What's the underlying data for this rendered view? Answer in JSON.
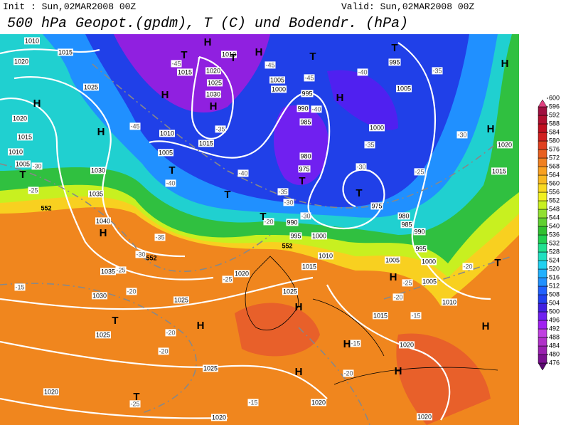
{
  "header": {
    "init": "Init : Sun,02MAR2008 00Z",
    "valid": "Valid: Sun,02MAR2008 00Z",
    "title": "500 hPa Geopot.(gpdm), T (C) und Bodendr. (hPa)"
  },
  "legend": {
    "levels": [
      476,
      480,
      484,
      488,
      492,
      496,
      500,
      504,
      508,
      512,
      516,
      520,
      524,
      528,
      532,
      536,
      540,
      544,
      548,
      552,
      556,
      560,
      564,
      568,
      572,
      576,
      580,
      584,
      588,
      592,
      596,
      600
    ],
    "colors": [
      "#5a0a6e",
      "#7a1090",
      "#9a20b0",
      "#b030c8",
      "#c040e0",
      "#a020f0",
      "#7020f0",
      "#4020e0",
      "#2040f0",
      "#2060ff",
      "#2090ff",
      "#20b0ff",
      "#20d0f0",
      "#20e0c0",
      "#20e090",
      "#20d050",
      "#30c030",
      "#60d030",
      "#90e030",
      "#c8f020",
      "#f0f020",
      "#f8d820",
      "#f8b820",
      "#f8a020",
      "#f08020",
      "#e86020",
      "#e04020",
      "#d02020",
      "#c01020",
      "#b01030",
      "#a01040",
      "#e04080"
    ]
  },
  "map": {
    "pressure_labels": [
      "1010",
      "1015",
      "1020",
      "1025",
      "1020",
      "1015",
      "1010",
      "1005",
      "1030",
      "1035",
      "1040",
      "1035",
      "1030",
      "1025",
      "1025",
      "1020",
      "1020",
      "1020",
      "1020",
      "1020",
      "1015",
      "1010",
      "1005",
      "1000",
      "995",
      "990",
      "985",
      "980",
      "975",
      "1000",
      "995",
      "990",
      "1010",
      "1015",
      "1020",
      "1025",
      "1025",
      "1015",
      "1020",
      "1025",
      "1030",
      "1010",
      "1005",
      "1000",
      "995",
      "990",
      "985",
      "980",
      "975",
      "1000",
      "995",
      "1005",
      "1020",
      "1015",
      "1010",
      "1005",
      "1015",
      "1005"
    ],
    "temperature_labels": [
      "-45",
      "-45",
      "-45",
      "-45",
      "-40",
      "-35",
      "-35",
      "-40",
      "-35",
      "-30",
      "-25",
      "-30",
      "-40",
      "-40",
      "-30",
      "-25",
      "-35",
      "-30",
      "-25",
      "-20",
      "-15",
      "-20",
      "-20",
      "-25",
      "-15",
      "-20",
      "-15",
      "-15",
      "-20",
      "-25",
      "-20",
      "-30",
      "-30",
      "-35",
      "-20",
      "-25"
    ],
    "contour_labels": [
      "552",
      "552",
      "552"
    ],
    "centers": [
      "T",
      "H",
      "T",
      "H",
      "H",
      "H",
      "T",
      "H",
      "T",
      "H",
      "H",
      "H",
      "H",
      "T",
      "H",
      "T",
      "T",
      "T",
      "T",
      "T",
      "H",
      "H",
      "T",
      "H",
      "H",
      "H",
      "T",
      "H",
      "H",
      "T"
    ]
  }
}
